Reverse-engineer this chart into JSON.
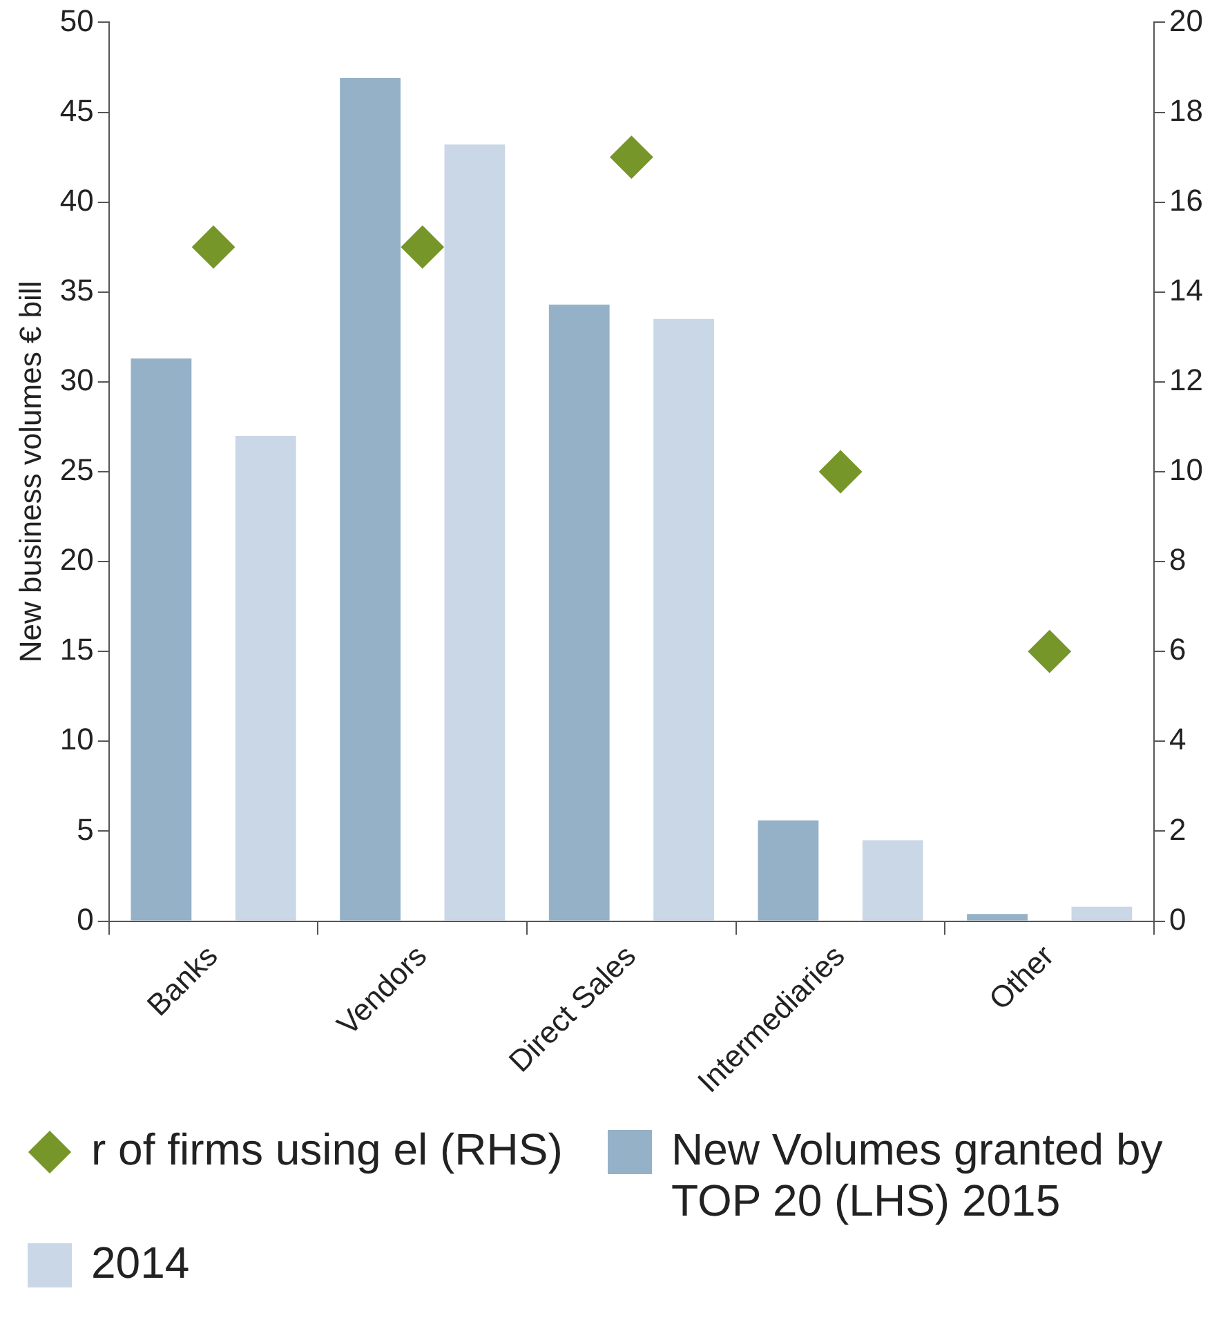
{
  "chart_data": {
    "type": "bar",
    "ylabel": "New business volumes € bill",
    "categories": [
      "Banks",
      "Vendors",
      "Direct Sales",
      "Intermediaries",
      "Other"
    ],
    "series": [
      {
        "name": "r of firms using el (RHS)",
        "type": "scatter",
        "marker": "diamond",
        "axis": "y2",
        "color": "#77962a",
        "values": [
          15,
          15,
          17,
          10,
          6
        ]
      },
      {
        "name": "New Volumes granted by TOP 20 (LHS) 2015",
        "color": "#94b1c8",
        "values": [
          31.3,
          46.9,
          34.3,
          5.6,
          0.4
        ]
      },
      {
        "name": "2014",
        "color": "#c9d7e6",
        "values": [
          27.0,
          43.2,
          33.5,
          4.5,
          0.8
        ]
      }
    ],
    "ylim": [
      0,
      50
    ],
    "yticks": [
      0,
      5,
      10,
      15,
      20,
      25,
      30,
      35,
      40,
      45,
      50
    ],
    "y2lim": [
      0,
      20
    ],
    "y2ticks": [
      0,
      2,
      4,
      6,
      8,
      10,
      12,
      14,
      16,
      18,
      20
    ],
    "grid": false,
    "legend": "bottom"
  }
}
